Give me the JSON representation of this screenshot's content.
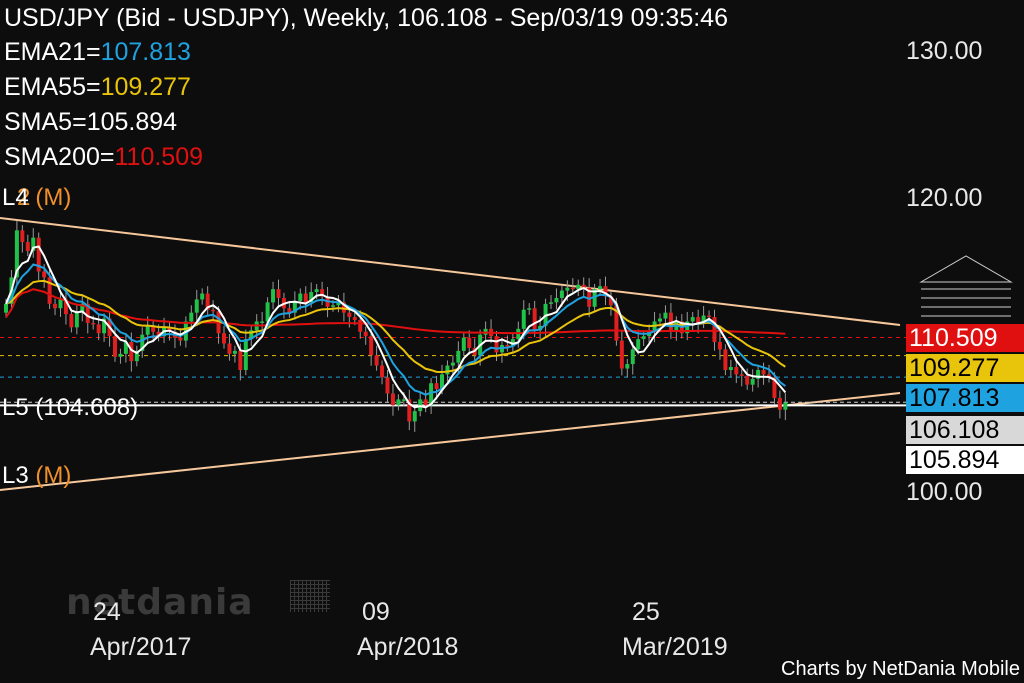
{
  "header": {
    "title": "USD/JPY (Bid - USDJPY),  Weekly, 106.108 - Sep/03/19 09:35:46",
    "ema21_label": "EMA21=",
    "ema21_value": "107.813",
    "ema55_label": "EMA55=",
    "ema55_value": "109.277",
    "sma5_label": "SMA5=",
    "sma5_value": "105.894",
    "sma200_label": "SMA200=",
    "sma200_value": "110.509"
  },
  "levels": {
    "l4": "L4",
    "l4_suffix": "(M)",
    "l4_overlap": "2",
    "l5": "L5 (104.608)",
    "l3": "L3",
    "l3_suffix": "(M)"
  },
  "price_boxes": {
    "sma200": "110.509",
    "ema55": "109.277",
    "ema21": "107.813",
    "last": "106.108",
    "sma5": "105.894"
  },
  "colors": {
    "background": "#0d0d0d",
    "ema21": "#1fa2e0",
    "ema55": "#e8c40a",
    "sma5": "#ffffff",
    "sma200": "#e01010",
    "bull": "#21c24a",
    "bear": "#e02020",
    "trendline": "#f6c79a",
    "level_label": "#f0902a"
  },
  "logo": "netdania",
  "credit": "Charts by NetDania Mobile",
  "chart_data": {
    "type": "candlestick",
    "symbol": "USD/JPY",
    "timeframe": "Weekly",
    "ylim": [
      97,
      131
    ],
    "y_ticks": [
      "130.00",
      "120.00",
      "100.00"
    ],
    "x_ticks": [
      {
        "day": "24",
        "month": "Apr/2017"
      },
      {
        "day": "09",
        "month": "Apr/2018"
      },
      {
        "day": "25",
        "month": "Mar/2019"
      }
    ],
    "indicators": {
      "EMA21": 107.813,
      "EMA55": 109.277,
      "SMA5": 105.894,
      "SMA200": 110.509
    },
    "last_price": 106.108,
    "support_level_L5": 104.608,
    "closes": [
      112.8,
      114.6,
      117.8,
      117.0,
      116.4,
      117.3,
      115.0,
      114.6,
      112.8,
      112.5,
      113.1,
      112.1,
      111.2,
      112.2,
      112.8,
      111.5,
      111.4,
      110.8,
      111.8,
      110.6,
      109.2,
      109.4,
      110.2,
      108.9,
      109.6,
      110.7,
      111.3,
      110.9,
      110.6,
      111.2,
      110.9,
      110.5,
      110.3,
      111.6,
      112.2,
      113.1,
      113.5,
      112.4,
      112.3,
      110.8,
      110.1,
      109.4,
      109.6,
      108.3,
      110.4,
      111.0,
      111.6,
      111.6,
      112.9,
      113.8,
      113.2,
      112.5,
      112.2,
      113.0,
      113.5,
      112.9,
      113.6,
      113.8,
      113.3,
      112.6,
      112.7,
      112.9,
      112.2,
      111.9,
      111.7,
      110.9,
      110.6,
      109.3,
      108.6,
      107.8,
      106.7,
      105.9,
      106.3,
      106.3,
      104.8,
      105.5,
      106.3,
      105.9,
      107.4,
      107.0,
      108.0,
      108.6,
      108.8,
      109.6,
      110.5,
      109.8,
      109.3,
      110.7,
      111.1,
      110.6,
      109.5,
      110.0,
      109.9,
      110.4,
      111.1,
      112.4,
      112.5,
      111.0,
      111.3,
      112.8,
      112.9,
      113.2,
      113.7,
      113.9,
      113.8,
      114.1,
      113.9,
      112.6,
      113.8,
      114.0,
      113.3,
      112.7,
      110.3,
      108.4,
      108.7,
      109.7,
      110.4,
      110.6,
      110.9,
      111.6,
      111.8,
      112.2,
      111.0,
      111.6,
      110.8,
      111.6,
      111.9,
      111.5,
      112.0,
      111.9,
      110.2,
      109.7,
      108.3,
      108.5,
      108.0,
      107.9,
      107.3,
      107.7,
      108.3,
      108.0,
      107.8,
      106.4,
      105.6,
      106.1
    ]
  }
}
